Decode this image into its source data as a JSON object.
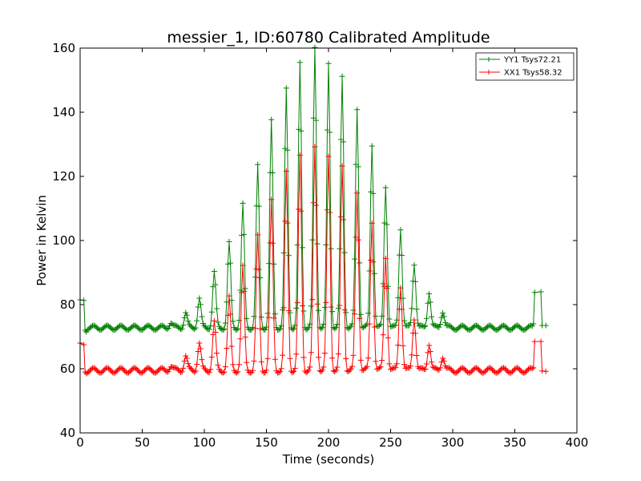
{
  "chart_data": {
    "type": "line",
    "title": "messier_1, ID:60780 Calibrated Amplitude",
    "xlabel": "Time (seconds)",
    "ylabel": "Power in Kelvin",
    "xlim": [
      0,
      400
    ],
    "ylim": [
      40,
      160
    ],
    "xticks": [
      0,
      50,
      100,
      150,
      200,
      250,
      300,
      350,
      400
    ],
    "yticks": [
      40,
      60,
      80,
      100,
      120,
      140,
      160
    ],
    "grid": false,
    "legend_position": "top-right",
    "marker": "+",
    "series": [
      {
        "name": "YY1 Tsys72.21",
        "color": "#008000",
        "baseline": 72.8,
        "start": [
          [
            0,
            81.5
          ],
          [
            3,
            81.3
          ],
          [
            4,
            72.0
          ],
          [
            5,
            71.5
          ]
        ],
        "end": [
          [
            365,
            74.0
          ],
          [
            366,
            83.8
          ],
          [
            371,
            84.0
          ],
          [
            372,
            73.5
          ],
          [
            375,
            73.5
          ]
        ],
        "peaks": [
          [
            73,
            74.5
          ],
          [
            85,
            77.5
          ],
          [
            96,
            82.0
          ],
          [
            108,
            90.0
          ],
          [
            120,
            99.0
          ],
          [
            131,
            111.0
          ],
          [
            143,
            123.0
          ],
          [
            154,
            137.0
          ],
          [
            166,
            147.0
          ],
          [
            177,
            155.0
          ],
          [
            189,
            160.0
          ],
          [
            200,
            155.0
          ],
          [
            211,
            151.0
          ],
          [
            223,
            141.0
          ],
          [
            235,
            130.0
          ],
          [
            246,
            117.0
          ],
          [
            258,
            104.0
          ],
          [
            269,
            93.0
          ],
          [
            281,
            84.0
          ],
          [
            292,
            78.0
          ]
        ]
      },
      {
        "name": "XX1 Tsys58.32",
        "color": "#ff0000",
        "baseline": 59.5,
        "start": [
          [
            0,
            68.0
          ],
          [
            3,
            67.5
          ],
          [
            4,
            59.0
          ],
          [
            5,
            58.5
          ]
        ],
        "end": [
          [
            365,
            60.3
          ],
          [
            366,
            68.5
          ],
          [
            371,
            68.5
          ],
          [
            372,
            59.3
          ],
          [
            375,
            59.2
          ]
        ],
        "peaks": [
          [
            73,
            61.0
          ],
          [
            85,
            64.0
          ],
          [
            96,
            68.0
          ],
          [
            108,
            74.5
          ],
          [
            120,
            82.0
          ],
          [
            131,
            91.5
          ],
          [
            143,
            101.0
          ],
          [
            154,
            112.0
          ],
          [
            166,
            121.0
          ],
          [
            177,
            126.0
          ],
          [
            189,
            129.0
          ],
          [
            200,
            126.0
          ],
          [
            211,
            123.0
          ],
          [
            223,
            115.0
          ],
          [
            235,
            106.0
          ],
          [
            246,
            95.0
          ],
          [
            258,
            86.0
          ],
          [
            269,
            76.0
          ],
          [
            281,
            68.0
          ],
          [
            292,
            64.0
          ]
        ]
      }
    ]
  }
}
